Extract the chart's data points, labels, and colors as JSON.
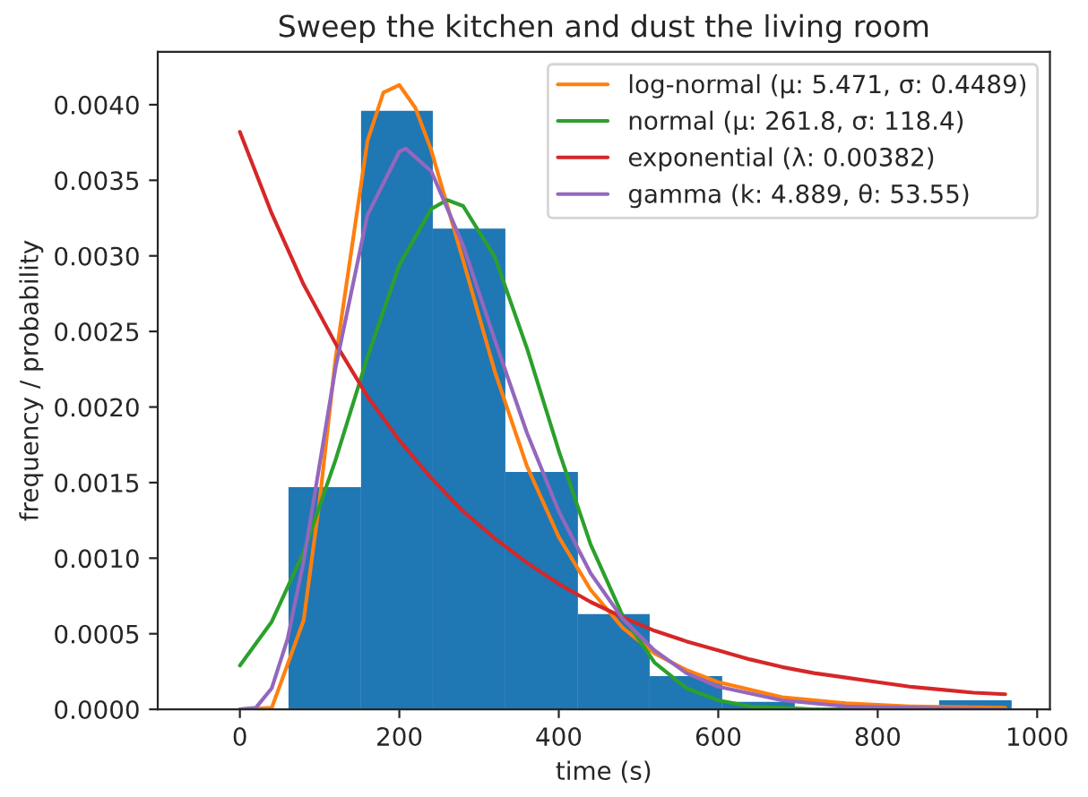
{
  "chart_data": {
    "type": "histogram",
    "title": "Sweep the kitchen and dust the living room",
    "xlabel": "time (s)",
    "ylabel": "frequency / probability",
    "bins": [
      61,
      152,
      242,
      333,
      424,
      514,
      605,
      696,
      877,
      968
    ],
    "values": [
      0.00147,
      0.00396,
      0.00318,
      0.00157,
      0.00063,
      0.00022,
      5e-05,
      0,
      6e-05
    ],
    "color": "#1f77b4",
    "series": [
      {
        "type": "line",
        "name": "log-normal (μ: 5.471, σ: 0.4489)",
        "color": "#ff7f0e",
        "x": [
          0,
          40,
          80,
          100,
          120,
          160,
          180,
          200,
          220,
          240,
          280,
          320,
          360,
          400,
          440,
          480,
          520,
          560,
          600,
          680,
          760,
          840,
          960
        ],
        "values": [
          0,
          1e-05,
          0.00059,
          0.00138,
          0.00232,
          0.00376,
          0.00408,
          0.00413,
          0.00398,
          0.0037,
          0.00297,
          0.00223,
          0.00161,
          0.00114,
          0.00079,
          0.00054,
          0.00037,
          0.00026,
          0.00018,
          8e-05,
          4e-05,
          2e-05,
          1e-05
        ]
      },
      {
        "type": "line",
        "name": "normal (μ: 261.8, σ: 118.4)",
        "color": "#2ca02c",
        "x": [
          0,
          40,
          80,
          120,
          160,
          200,
          240,
          260,
          280,
          320,
          360,
          400,
          440,
          480,
          520,
          560,
          600,
          640,
          680,
          720,
          960
        ],
        "values": [
          0.00029,
          0.00058,
          0.00104,
          0.00165,
          0.00233,
          0.00294,
          0.00331,
          0.00337,
          0.00333,
          0.00299,
          0.00239,
          0.00171,
          0.00109,
          0.00062,
          0.00031,
          0.00014,
          6e-05,
          2e-05,
          1e-05,
          0,
          0
        ]
      },
      {
        "type": "line",
        "name": "exponential (λ: 0.00382)",
        "color": "#d62728",
        "x": [
          0,
          40,
          80,
          120,
          160,
          200,
          240,
          280,
          320,
          360,
          400,
          440,
          480,
          520,
          560,
          600,
          640,
          680,
          720,
          760,
          800,
          840,
          880,
          920,
          960
        ],
        "values": [
          0.00382,
          0.00328,
          0.00281,
          0.00242,
          0.00207,
          0.00178,
          0.00153,
          0.00131,
          0.00113,
          0.00097,
          0.00083,
          0.00071,
          0.00061,
          0.00052,
          0.00045,
          0.00039,
          0.00033,
          0.00028,
          0.00024,
          0.00021,
          0.00018,
          0.00015,
          0.00013,
          0.00011,
          0.0001
        ]
      },
      {
        "type": "line",
        "name": "gamma (k: 4.889, θ: 53.55)",
        "color": "#9467bd",
        "x": [
          0,
          20,
          40,
          60,
          80,
          120,
          160,
          200,
          208,
          240,
          280,
          320,
          360,
          400,
          440,
          480,
          520,
          560,
          600,
          680,
          760,
          840,
          960
        ],
        "values": [
          0,
          1e-05,
          0.00014,
          0.00047,
          0.00098,
          0.00226,
          0.00327,
          0.00369,
          0.00371,
          0.00356,
          0.00307,
          0.00244,
          0.00183,
          0.00131,
          0.0009,
          0.0006,
          0.00039,
          0.00024,
          0.00015,
          6e-05,
          2e-05,
          1e-05,
          0
        ]
      }
    ],
    "xlim": [
      -103,
      1016
    ],
    "xticks": [
      0,
      200,
      400,
      600,
      800,
      1000
    ],
    "ylim": [
      0,
      0.00435
    ],
    "yticks": [
      {
        "value": 0,
        "label": "0.0000"
      },
      {
        "value": 0.0005,
        "label": "0.0005"
      },
      {
        "value": 0.001,
        "label": "0.0010"
      },
      {
        "value": 0.0015,
        "label": "0.0015"
      },
      {
        "value": 0.002,
        "label": "0.0020"
      },
      {
        "value": 0.0025,
        "label": "0.0025"
      },
      {
        "value": 0.003,
        "label": "0.0030"
      },
      {
        "value": 0.0035,
        "label": "0.0035"
      },
      {
        "value": 0.004,
        "label": "0.0040"
      }
    ],
    "legend": "top right",
    "grid": false
  }
}
